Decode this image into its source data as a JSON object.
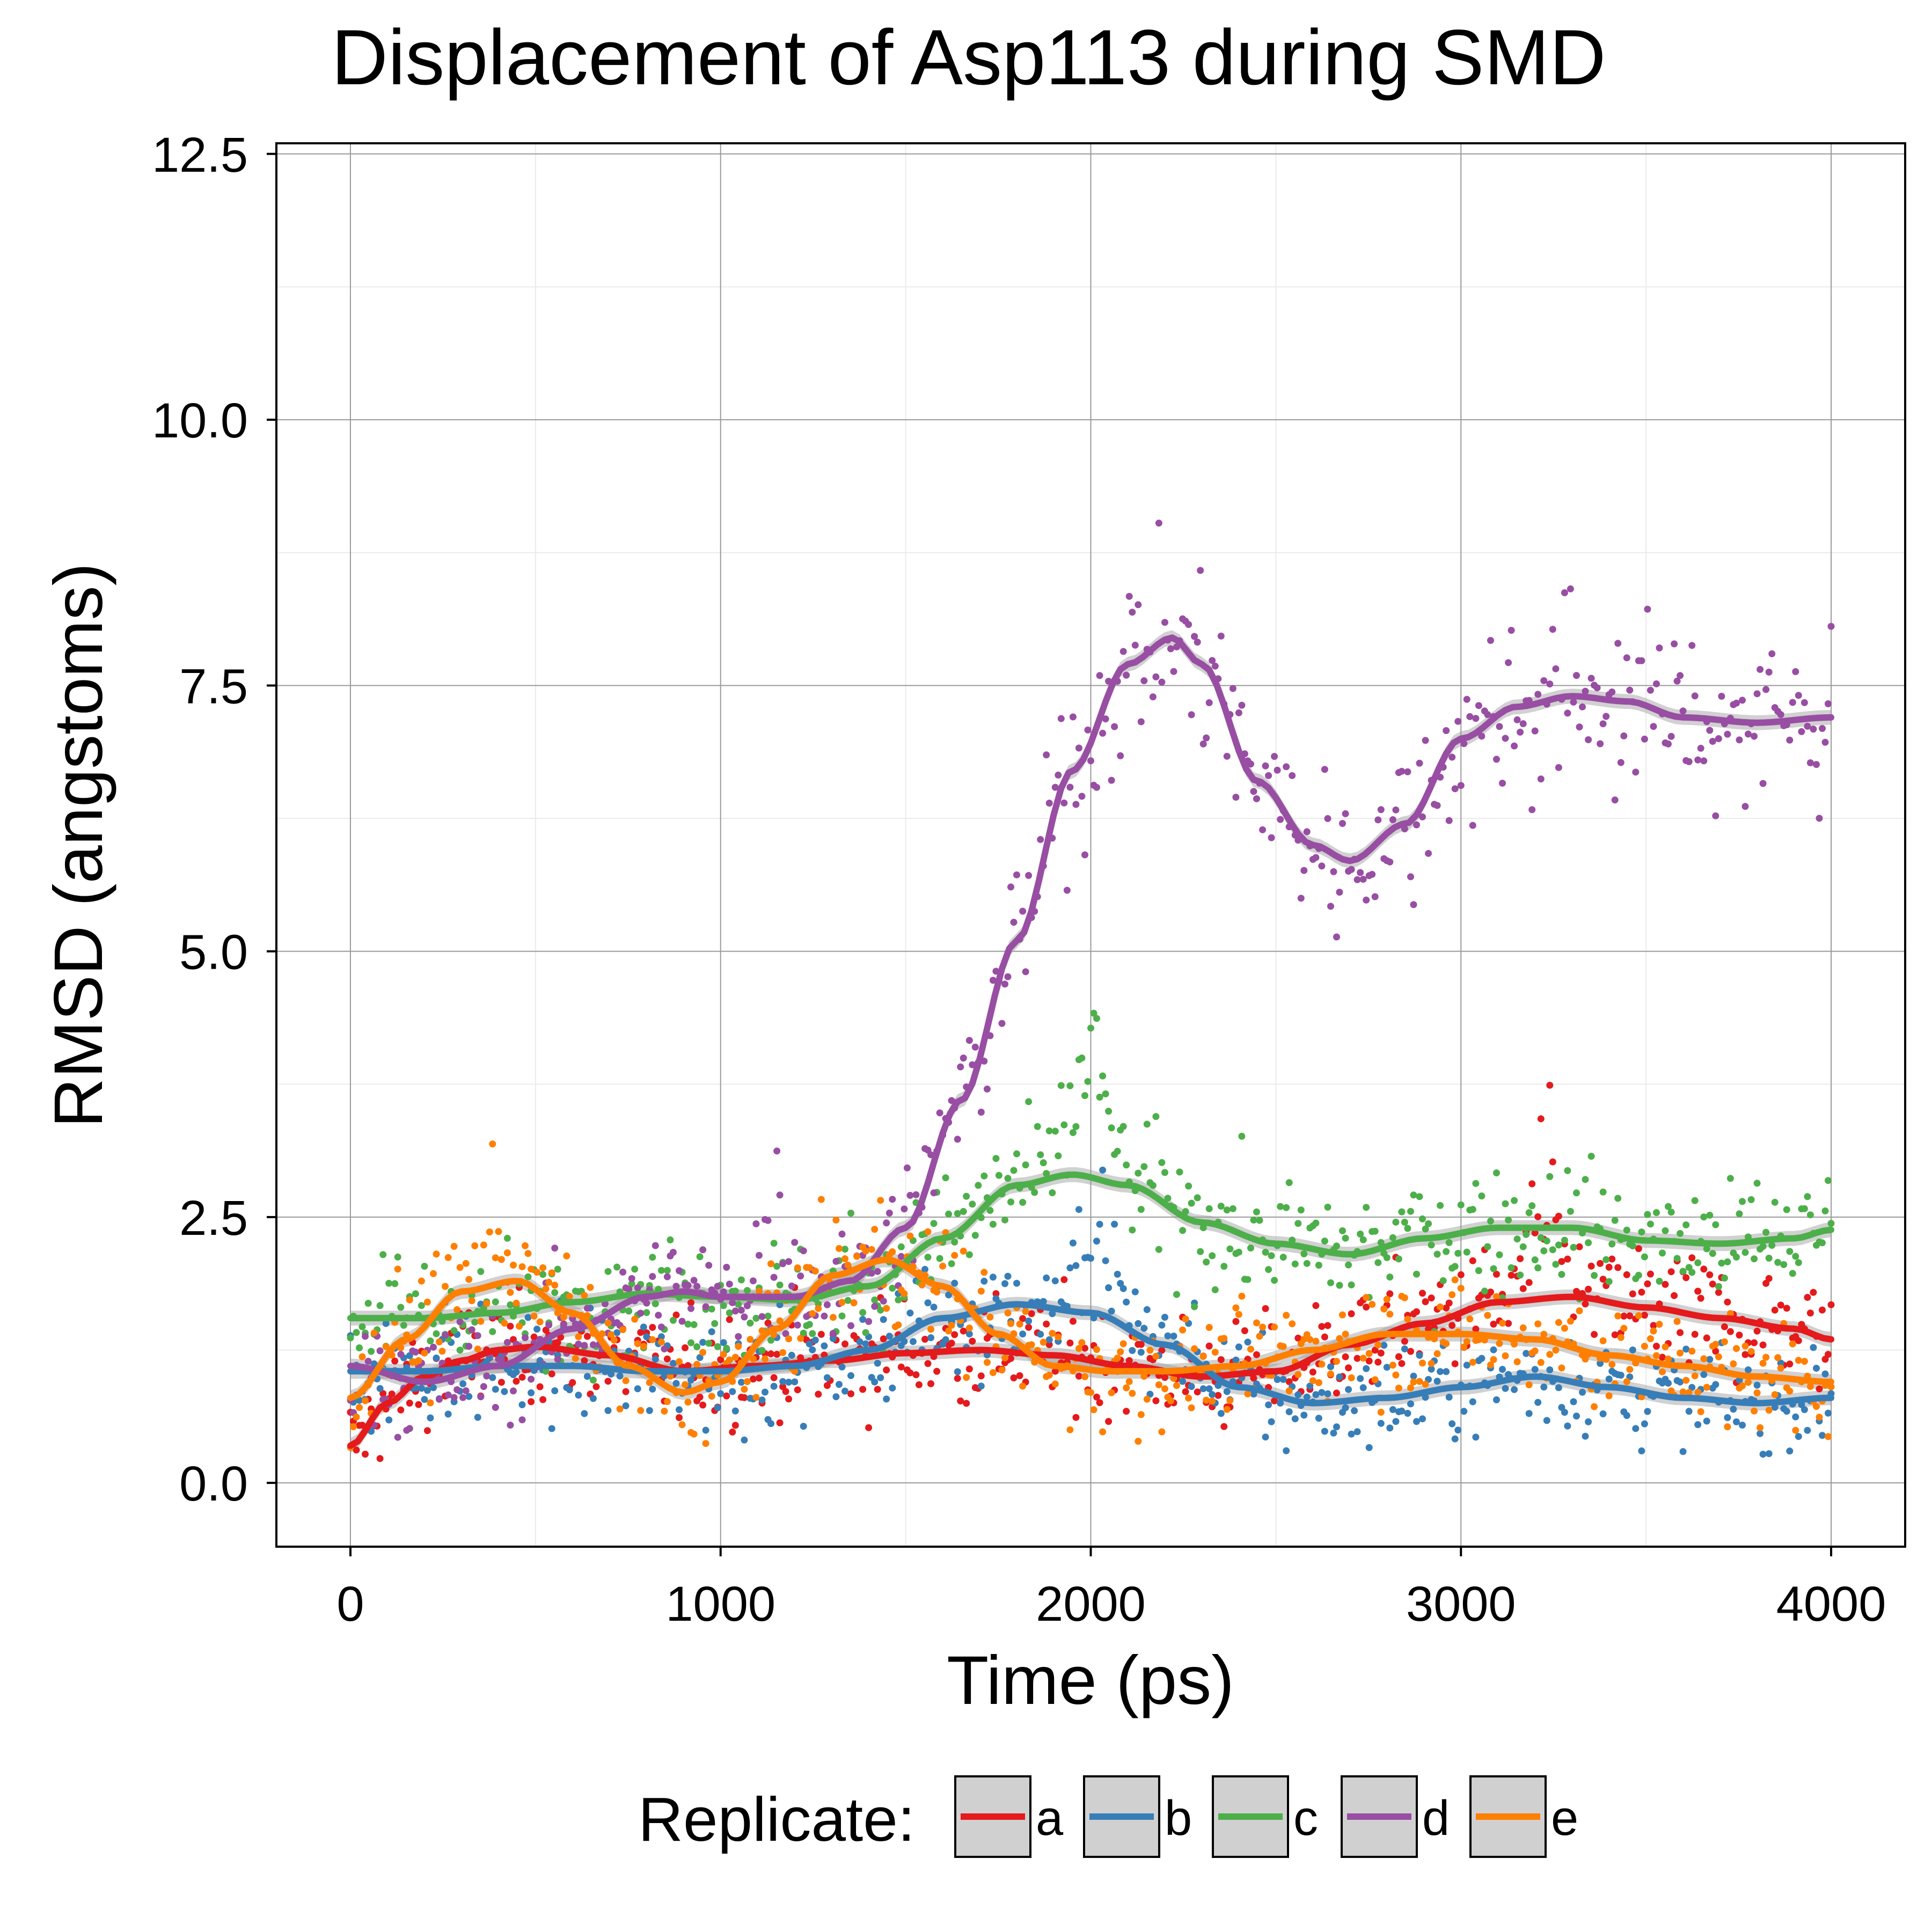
{
  "chart_data": {
    "type": "scatter",
    "title": "Displacement of Asp113 during SMD",
    "xlabel": "Time (ps)",
    "ylabel": "RMSD (angstoms)",
    "xlim": [
      -200,
      4200
    ],
    "ylim": [
      -0.6,
      12.6
    ],
    "x_ticks": [
      0,
      1000,
      2000,
      3000,
      4000
    ],
    "x_tick_labels": [
      "0",
      "1000",
      "2000",
      "3000",
      "4000"
    ],
    "y_ticks": [
      0,
      2.5,
      5,
      7.5,
      10,
      12.5
    ],
    "y_tick_labels": [
      "0.0",
      "2.5",
      "5.0",
      "7.5",
      "10.0",
      "12.5"
    ],
    "grid": true,
    "legend": {
      "title": "Replicate:",
      "position": "bottom"
    },
    "smoothing": "loess fit with grey confidence band over per-frame points",
    "series": [
      {
        "name": "a",
        "color": "#e41a1c",
        "trend": {
          "x": [
            0,
            100,
            200,
            300,
            400,
            500,
            700,
            900,
            1100,
            1300,
            1500,
            1700,
            1900,
            2100,
            2300,
            2500,
            2700,
            2900,
            3100,
            3300,
            3500,
            3700,
            3900,
            4000
          ],
          "y": [
            0.35,
            0.75,
            1.0,
            1.15,
            1.25,
            1.28,
            1.2,
            1.05,
            1.1,
            1.15,
            1.22,
            1.25,
            1.2,
            1.1,
            1.0,
            1.05,
            1.3,
            1.5,
            1.7,
            1.75,
            1.65,
            1.55,
            1.45,
            1.35
          ]
        },
        "spikes": [
          {
            "x": [
              3150,
              3300
            ],
            "peak": 4.4
          }
        ]
      },
      {
        "name": "b",
        "color": "#377eb8",
        "trend": {
          "x": [
            0,
            200,
            400,
            600,
            800,
            1000,
            1200,
            1400,
            1600,
            1800,
            2000,
            2200,
            2400,
            2600,
            2800,
            3000,
            3200,
            3400,
            3600,
            3800,
            4000
          ],
          "y": [
            1.05,
            1.05,
            1.1,
            1.1,
            1.05,
            1.05,
            1.1,
            1.25,
            1.55,
            1.68,
            1.6,
            1.3,
            0.9,
            0.75,
            0.8,
            0.9,
            1.0,
            0.9,
            0.8,
            0.75,
            0.8
          ]
        },
        "spikes": [
          {
            "x": [
              1900,
              2150
            ],
            "peak": 3.3
          }
        ]
      },
      {
        "name": "c",
        "color": "#4daf4a",
        "trend": {
          "x": [
            0,
            200,
            400,
            600,
            800,
            1000,
            1200,
            1400,
            1600,
            1800,
            1950,
            2100,
            2300,
            2500,
            2700,
            2900,
            3100,
            3300,
            3500,
            3700,
            3900,
            4000
          ],
          "y": [
            1.55,
            1.55,
            1.6,
            1.7,
            1.78,
            1.75,
            1.72,
            1.85,
            2.3,
            2.8,
            2.9,
            2.8,
            2.45,
            2.25,
            2.15,
            2.3,
            2.4,
            2.4,
            2.28,
            2.25,
            2.3,
            2.38
          ]
        },
        "spikes": [
          {
            "x": [
              1880,
              2100
            ],
            "peak": 5.5
          }
        ]
      },
      {
        "name": "d",
        "color": "#984ea3",
        "trend": {
          "x": [
            0,
            200,
            400,
            600,
            800,
            900,
            1000,
            1200,
            1350,
            1500,
            1650,
            1800,
            1950,
            2100,
            2220,
            2300,
            2450,
            2600,
            2700,
            2850,
            3000,
            3150,
            3300,
            3450,
            3600,
            3800,
            4000
          ],
          "y": [
            1.1,
            0.95,
            1.1,
            1.45,
            1.75,
            1.8,
            1.75,
            1.75,
            1.9,
            2.4,
            3.6,
            5.1,
            6.7,
            7.7,
            7.95,
            7.7,
            6.6,
            6.0,
            5.85,
            6.2,
            7.0,
            7.3,
            7.4,
            7.35,
            7.2,
            7.15,
            7.2
          ]
        },
        "spikes": [
          {
            "x": [
              1050,
              1250
            ],
            "peak": 3.6
          }
        ]
      },
      {
        "name": "e",
        "color": "#ff7f00",
        "trend": {
          "x": [
            0,
            150,
            300,
            450,
            600,
            750,
            900,
            1000,
            1150,
            1300,
            1450,
            1600,
            1750,
            1900,
            2050,
            2200,
            2400,
            2600,
            2800,
            3000,
            3200,
            3400,
            3600,
            3800,
            4000
          ],
          "y": [
            0.8,
            1.35,
            1.8,
            1.9,
            1.6,
            1.1,
            0.85,
            0.95,
            1.45,
            1.95,
            2.1,
            1.85,
            1.4,
            1.1,
            1.05,
            1.05,
            1.1,
            1.25,
            1.4,
            1.4,
            1.35,
            1.2,
            1.1,
            1.0,
            0.95
          ]
        },
        "spikes": [
          {
            "x": [
              350,
              450
            ],
            "peak": 3.4
          }
        ]
      }
    ]
  }
}
